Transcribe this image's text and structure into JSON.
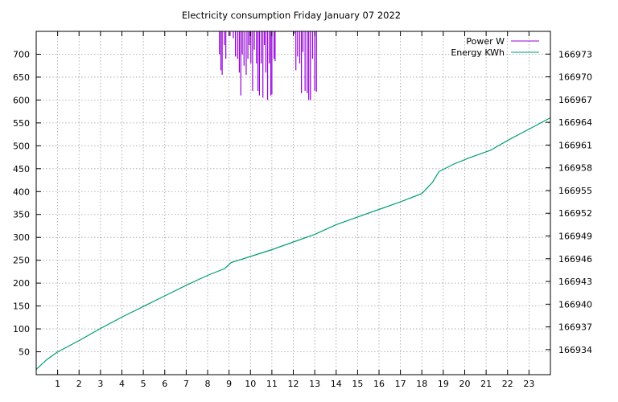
{
  "chart_data": {
    "type": "line",
    "title": "Electricity consumption Friday January 07 2022",
    "xlabel": "",
    "ylabel": "",
    "y2label": "",
    "xlim": [
      0,
      24
    ],
    "ylim": [
      0,
      750
    ],
    "y2lim": [
      166930.7,
      166976
    ],
    "grid": true,
    "legend_position": "top-right",
    "x_ticks": [
      "1",
      "2",
      "3",
      "4",
      "5",
      "6",
      "7",
      "8",
      "9",
      "10",
      "11",
      "12",
      "13",
      "14",
      "15",
      "16",
      "17",
      "18",
      "19",
      "20",
      "21",
      "22",
      "23"
    ],
    "y_ticks": [
      "50",
      "100",
      "150",
      "200",
      "250",
      "300",
      "350",
      "400",
      "450",
      "500",
      "550",
      "600",
      "650",
      "700"
    ],
    "y2_ticks": [
      "166934",
      "166937",
      "166940",
      "166943",
      "166946",
      "166949",
      "166952",
      "166955",
      "166958",
      "166961",
      "166964",
      "166967",
      "166970",
      "166973"
    ],
    "series": [
      {
        "name": "Power W",
        "axis": "y",
        "color": "#9400d3",
        "spikes": [
          {
            "x": 8.55,
            "min": 700
          },
          {
            "x": 8.62,
            "min": 665
          },
          {
            "x": 8.68,
            "min": 655
          },
          {
            "x": 8.78,
            "min": 720
          },
          {
            "x": 8.85,
            "min": 690
          },
          {
            "x": 9.05,
            "min": 740
          },
          {
            "x": 9.2,
            "min": 735
          },
          {
            "x": 9.3,
            "min": 695
          },
          {
            "x": 9.4,
            "min": 690
          },
          {
            "x": 9.48,
            "min": 660
          },
          {
            "x": 9.55,
            "min": 610
          },
          {
            "x": 9.62,
            "min": 700
          },
          {
            "x": 9.7,
            "min": 675
          },
          {
            "x": 9.8,
            "min": 655
          },
          {
            "x": 9.88,
            "min": 690
          },
          {
            "x": 9.95,
            "min": 720
          },
          {
            "x": 10.02,
            "min": 680
          },
          {
            "x": 10.1,
            "min": 620
          },
          {
            "x": 10.18,
            "min": 710
          },
          {
            "x": 10.28,
            "min": 680
          },
          {
            "x": 10.35,
            "min": 620
          },
          {
            "x": 10.42,
            "min": 610
          },
          {
            "x": 10.5,
            "min": 680
          },
          {
            "x": 10.58,
            "min": 605
          },
          {
            "x": 10.65,
            "min": 720
          },
          {
            "x": 10.72,
            "min": 660
          },
          {
            "x": 10.8,
            "min": 600
          },
          {
            "x": 10.88,
            "min": 680
          },
          {
            "x": 10.95,
            "min": 610
          },
          {
            "x": 11.0,
            "min": 612
          },
          {
            "x": 11.1,
            "min": 690
          },
          {
            "x": 11.15,
            "min": 685
          },
          {
            "x": 12.05,
            "min": 745
          },
          {
            "x": 12.12,
            "min": 665
          },
          {
            "x": 12.2,
            "min": 695
          },
          {
            "x": 12.3,
            "min": 680
          },
          {
            "x": 12.38,
            "min": 615
          },
          {
            "x": 12.45,
            "min": 705
          },
          {
            "x": 12.55,
            "min": 620
          },
          {
            "x": 12.65,
            "min": 615
          },
          {
            "x": 12.72,
            "min": 600
          },
          {
            "x": 12.8,
            "min": 600
          },
          {
            "x": 12.9,
            "min": 690
          },
          {
            "x": 13.0,
            "min": 620
          },
          {
            "x": 13.08,
            "min": 618
          }
        ]
      },
      {
        "name": "Energy KWh",
        "axis": "y2",
        "color": "#009e73",
        "x": [
          0,
          0.5,
          1,
          2,
          3,
          4,
          5,
          6,
          7,
          8,
          8.8,
          9.1,
          10,
          11,
          12,
          13,
          14,
          15,
          16,
          17,
          18,
          18.5,
          18.8,
          19.5,
          20.2,
          21.2,
          22,
          23,
          24
        ],
        "y": [
          166931.4,
          166932.7,
          166933.7,
          166935.2,
          166936.8,
          166938.3,
          166939.7,
          166941.1,
          166942.5,
          166943.8,
          166944.7,
          166945.5,
          166946.3,
          166947.2,
          166948.2,
          166949.2,
          166950.5,
          166951.5,
          166952.5,
          166953.5,
          166954.6,
          166956.1,
          166957.5,
          166958.5,
          166959.3,
          166960.3,
          166961.6,
          166963.1,
          166964.6
        ]
      }
    ]
  }
}
